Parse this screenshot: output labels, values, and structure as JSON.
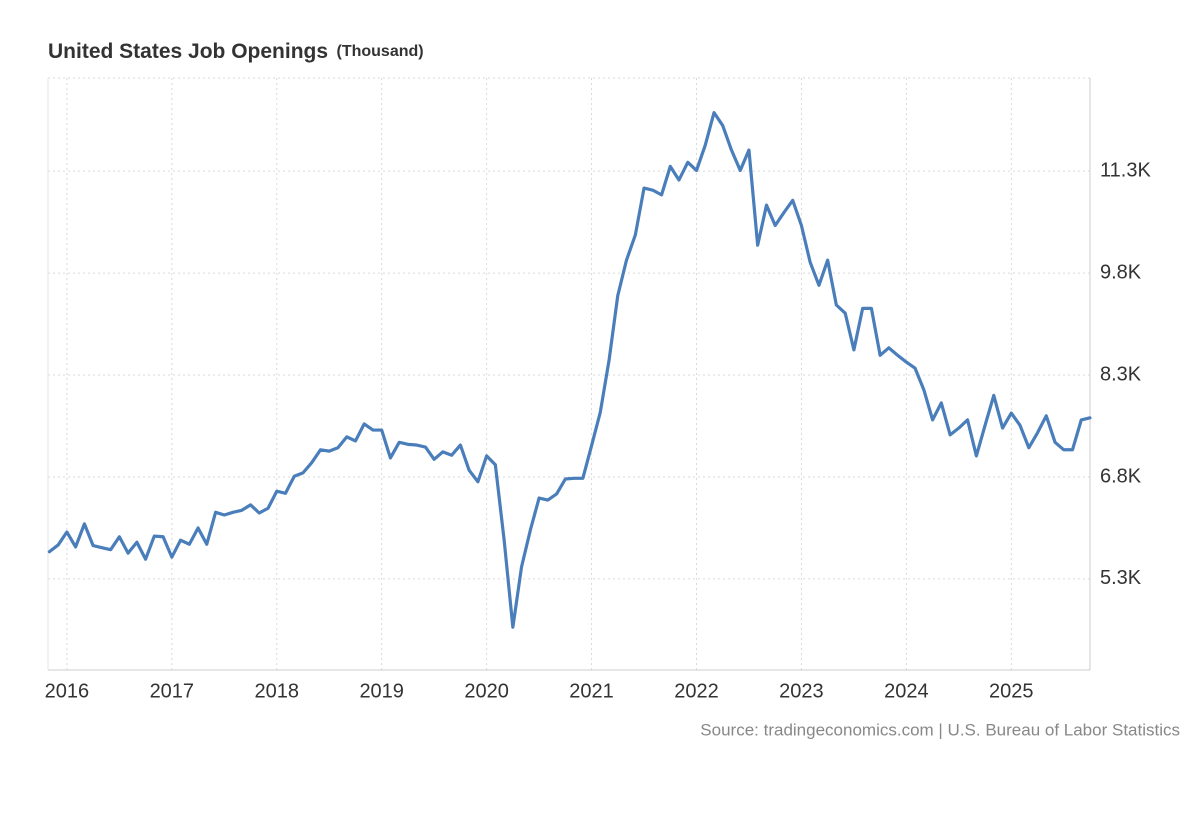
{
  "chart_data": {
    "type": "line",
    "title": "United States Job Openings",
    "title_unit": "(Thousand)",
    "source": "Source: tradingeconomics.com | U.S. Bureau of Labor Statistics",
    "grid": true,
    "xlim": [
      2015.82,
      2025.75
    ],
    "xticks": [
      2016,
      2017,
      2018,
      2019,
      2020,
      2021,
      2022,
      2023,
      2024,
      2025
    ],
    "ylim": [
      3960,
      12670
    ],
    "yticks": [
      {
        "value": 5300,
        "label": "5.3K"
      },
      {
        "value": 6800,
        "label": "6.8K"
      },
      {
        "value": 8300,
        "label": "8.3K"
      },
      {
        "value": 9800,
        "label": "9.8K"
      },
      {
        "value": 11300,
        "label": "11.3K"
      }
    ],
    "x": [
      2015.833,
      2015.917,
      2016.0,
      2016.083,
      2016.167,
      2016.25,
      2016.333,
      2016.417,
      2016.5,
      2016.583,
      2016.667,
      2016.75,
      2016.833,
      2016.917,
      2017.0,
      2017.083,
      2017.167,
      2017.25,
      2017.333,
      2017.417,
      2017.5,
      2017.583,
      2017.667,
      2017.75,
      2017.833,
      2017.917,
      2018.0,
      2018.083,
      2018.167,
      2018.25,
      2018.333,
      2018.417,
      2018.5,
      2018.583,
      2018.667,
      2018.75,
      2018.833,
      2018.917,
      2019.0,
      2019.083,
      2019.167,
      2019.25,
      2019.333,
      2019.417,
      2019.5,
      2019.583,
      2019.667,
      2019.75,
      2019.833,
      2019.917,
      2020.0,
      2020.083,
      2020.167,
      2020.25,
      2020.333,
      2020.417,
      2020.5,
      2020.583,
      2020.667,
      2020.75,
      2020.833,
      2020.917,
      2021.0,
      2021.083,
      2021.167,
      2021.25,
      2021.333,
      2021.417,
      2021.5,
      2021.583,
      2021.667,
      2021.75,
      2021.833,
      2021.917,
      2022.0,
      2022.083,
      2022.167,
      2022.25,
      2022.333,
      2022.417,
      2022.5,
      2022.583,
      2022.667,
      2022.75,
      2022.833,
      2022.917,
      2023.0,
      2023.083,
      2023.167,
      2023.25,
      2023.333,
      2023.417,
      2023.5,
      2023.583,
      2023.667,
      2023.75,
      2023.833,
      2023.917,
      2024.0,
      2024.083,
      2024.167,
      2024.25,
      2024.333,
      2024.417,
      2024.5,
      2024.583,
      2024.667,
      2024.75,
      2024.833,
      2024.917,
      2025.0,
      2025.083,
      2025.167,
      2025.25,
      2025.333,
      2025.417,
      2025.5,
      2025.583,
      2025.667,
      2025.75
    ],
    "series": [
      {
        "name": "Job Openings",
        "color": "#4a7ebb",
        "values": [
          5700,
          5800,
          5990,
          5770,
          6110,
          5790,
          5760,
          5730,
          5920,
          5680,
          5840,
          5590,
          5930,
          5920,
          5620,
          5870,
          5810,
          6050,
          5810,
          6280,
          6240,
          6280,
          6310,
          6390,
          6270,
          6340,
          6590,
          6560,
          6810,
          6860,
          7010,
          7200,
          7180,
          7230,
          7390,
          7330,
          7580,
          7490,
          7490,
          7080,
          7310,
          7280,
          7270,
          7240,
          7060,
          7170,
          7120,
          7270,
          6900,
          6730,
          7110,
          6980,
          5870,
          4590,
          5480,
          6020,
          6490,
          6460,
          6550,
          6770,
          6780,
          6780,
          7260,
          7750,
          8520,
          9470,
          9990,
          10360,
          11050,
          11020,
          10950,
          11370,
          11170,
          11430,
          11310,
          11680,
          12160,
          11970,
          11610,
          11310,
          11610,
          10210,
          10800,
          10500,
          10690,
          10870,
          10500,
          9960,
          9620,
          9990,
          9330,
          9210,
          8670,
          9280,
          9280,
          8590,
          8700,
          8590,
          8490,
          8400,
          8080,
          7640,
          7890,
          7420,
          7520,
          7640,
          7110,
          7560,
          8000,
          7520,
          7740,
          7560,
          7230,
          7450,
          7700,
          7310,
          7200,
          7200,
          7640,
          7670
        ]
      }
    ]
  }
}
